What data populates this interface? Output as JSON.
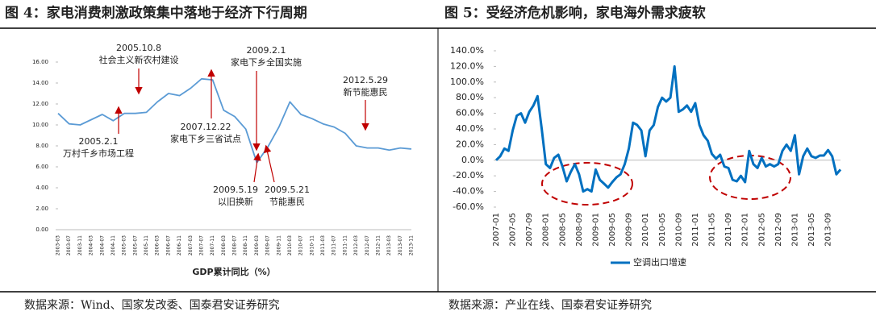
{
  "chart_data": [
    {
      "type": "line",
      "title": "图 4：家电消费刺激政策集中落地于经济下行周期",
      "source": "数据来源：Wind、国家发改委、国泰君安证券研究",
      "categories": [
        "2003-03",
        "2003-07",
        "2003-11",
        "2004-03",
        "2004-07",
        "2004-11",
        "2005-03",
        "2005-07",
        "2005-11",
        "2006-03",
        "2006-07",
        "2006-11",
        "2007-03",
        "2007-07",
        "2007-11",
        "2008-03",
        "2008-07",
        "2008-11",
        "2009-03",
        "2009-07",
        "2009-11",
        "2010-03",
        "2010-07",
        "2010-11",
        "2011-03",
        "2011-07",
        "2011-11",
        "2012-03",
        "2012-07",
        "2012-11",
        "2013-03",
        "2013-07",
        "2013-11"
      ],
      "series": [
        {
          "name": "GDP累计同比（%）",
          "color": "#5b9bd5",
          "values": [
            11.1,
            10.1,
            10.0,
            10.5,
            11.0,
            10.4,
            11.1,
            11.1,
            11.2,
            12.2,
            13.0,
            12.8,
            13.5,
            14.4,
            14.3,
            11.4,
            10.8,
            9.6,
            6.4,
            7.9,
            9.8,
            12.2,
            11.0,
            10.6,
            10.1,
            9.8,
            9.2,
            8.0,
            7.8,
            7.8,
            7.6,
            7.8,
            7.7
          ]
        }
      ],
      "ylim": [
        0,
        16
      ],
      "yticks": [
        {
          "value": 0,
          "label": "0.00"
        },
        {
          "value": 2,
          "label": "2.00"
        },
        {
          "value": 4,
          "label": "4.00"
        },
        {
          "value": 6,
          "label": "6.00"
        },
        {
          "value": 8,
          "label": "8.00"
        },
        {
          "value": 10,
          "label": "10.00"
        },
        {
          "value": 12,
          "label": "12.00"
        },
        {
          "value": 14,
          "label": "14.00"
        },
        {
          "value": 16,
          "label": "16.00"
        }
      ],
      "annotations": [
        {
          "lines": [
            "2005.10.8",
            "社会主义新农村建设"
          ]
        },
        {
          "lines": [
            "2005.2.1",
            "万村千乡市场工程"
          ]
        },
        {
          "lines": [
            "2009.2.1",
            "家电下乡全国实施"
          ]
        },
        {
          "lines": [
            "2007.12.22",
            "家电下乡三省试点"
          ]
        },
        {
          "lines": [
            "2009.5.19",
            "以旧换新"
          ]
        },
        {
          "lines": [
            "2009.5.21",
            "节能惠民"
          ]
        },
        {
          "lines": [
            "2012.5.29",
            "新节能惠民"
          ]
        }
      ]
    },
    {
      "type": "line",
      "title": "图 5：受经济危机影响，家电海外需求疲软",
      "source": "数据来源：产业在线、国泰君安证券研究",
      "categories": [
        "2007-01",
        null,
        null,
        null,
        "2007-05",
        null,
        null,
        null,
        "2007-09",
        null,
        null,
        null,
        "2008-01",
        null,
        null,
        null,
        "2008-05",
        null,
        null,
        null,
        "2008-09",
        null,
        null,
        null,
        "2009-01",
        null,
        null,
        null,
        "2009-05",
        null,
        null,
        null,
        "2009-09",
        null,
        null,
        null,
        "2010-01",
        null,
        null,
        null,
        "2010-05",
        null,
        null,
        null,
        "2010-09",
        null,
        null,
        null,
        "2011-01",
        null,
        null,
        null,
        "2011-05",
        null,
        null,
        null,
        "2011-09",
        null,
        null,
        null,
        "2012-01",
        null,
        null,
        null,
        "2012-05",
        null,
        null,
        null,
        "2012-09",
        null,
        null,
        null,
        "2013-01",
        null,
        null,
        null,
        "2013-05",
        null,
        null,
        null,
        "2013-09",
        null,
        null,
        null
      ],
      "series": [
        {
          "name": "空调出口增速",
          "color": "#0070c0",
          "values": [
            0,
            5,
            15,
            12,
            38,
            57,
            60,
            48,
            62,
            70,
            82,
            40,
            -5,
            -10,
            3,
            7,
            -8,
            -27,
            -15,
            -5,
            -18,
            -40,
            -37,
            -40,
            -12,
            -25,
            -30,
            -35,
            -28,
            -22,
            -18,
            -5,
            15,
            48,
            45,
            38,
            5,
            38,
            45,
            68,
            80,
            75,
            80,
            120,
            62,
            65,
            70,
            62,
            73,
            45,
            32,
            25,
            8,
            2,
            7,
            -8,
            -10,
            -25,
            -27,
            -20,
            -28,
            12,
            -5,
            -10,
            3,
            -8,
            -5,
            -8,
            -5,
            12,
            20,
            12,
            32,
            -18,
            5,
            15,
            5,
            3,
            6,
            6,
            13,
            5,
            -18,
            -12
          ]
        }
      ],
      "ylim": [
        -60,
        140
      ],
      "yticks": [
        {
          "value": -60,
          "label": "-60.0%"
        },
        {
          "value": -40,
          "label": "-40.0%"
        },
        {
          "value": -20,
          "label": "-20.0%"
        },
        {
          "value": 0,
          "label": "0.0%"
        },
        {
          "value": 20,
          "label": "20.0%"
        },
        {
          "value": 40,
          "label": "40.0%"
        },
        {
          "value": 60,
          "label": "60.0%"
        },
        {
          "value": 80,
          "label": "80.0%"
        },
        {
          "value": 100,
          "label": "100.0%"
        },
        {
          "value": 120,
          "label": "120.0%"
        },
        {
          "value": 140,
          "label": "140.0%"
        }
      ]
    }
  ]
}
